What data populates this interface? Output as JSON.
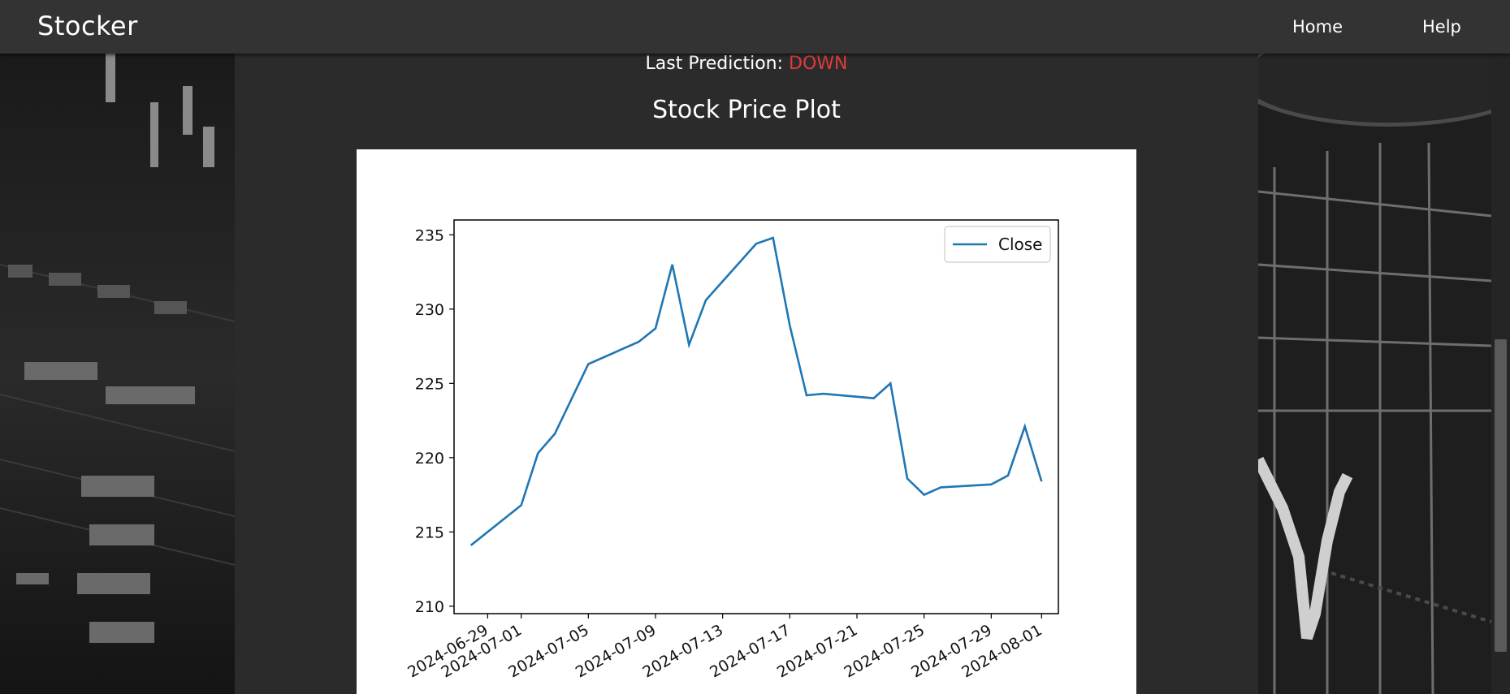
{
  "navbar": {
    "brand": "Stocker",
    "links": [
      "Home",
      "Help"
    ]
  },
  "prediction": {
    "label": "Last Prediction:",
    "value": "DOWN",
    "value_color": "#e23b3b"
  },
  "plot_title": "Stock Price Plot",
  "chart_data": {
    "type": "line",
    "title": "",
    "xlabel": "",
    "ylabel": "",
    "x": [
      "2024-06-28",
      "2024-07-01",
      "2024-07-02",
      "2024-07-03",
      "2024-07-05",
      "2024-07-08",
      "2024-07-09",
      "2024-07-10",
      "2024-07-11",
      "2024-07-12",
      "2024-07-15",
      "2024-07-16",
      "2024-07-17",
      "2024-07-18",
      "2024-07-19",
      "2024-07-22",
      "2024-07-23",
      "2024-07-24",
      "2024-07-25",
      "2024-07-26",
      "2024-07-29",
      "2024-07-30",
      "2024-07-31",
      "2024-08-01"
    ],
    "series": [
      {
        "name": "Close",
        "color": "#1f77b4",
        "values": [
          214.1,
          216.8,
          220.3,
          221.6,
          226.3,
          227.8,
          228.7,
          233.0,
          227.6,
          230.6,
          234.4,
          234.8,
          228.9,
          224.2,
          224.3,
          224.0,
          225.0,
          218.6,
          217.5,
          218.0,
          218.2,
          218.8,
          222.1,
          218.4
        ]
      }
    ],
    "ylim": [
      209.5,
      236.0
    ],
    "yticks": [
      "210",
      "215",
      "220",
      "225",
      "230",
      "235"
    ],
    "xticks": [
      "2024-06-29",
      "2024-07-01",
      "2024-07-05",
      "2024-07-09",
      "2024-07-13",
      "2024-07-17",
      "2024-07-21",
      "2024-07-25",
      "2024-07-29",
      "2024-08-01"
    ],
    "legend": "upper-right",
    "grid": false
  }
}
